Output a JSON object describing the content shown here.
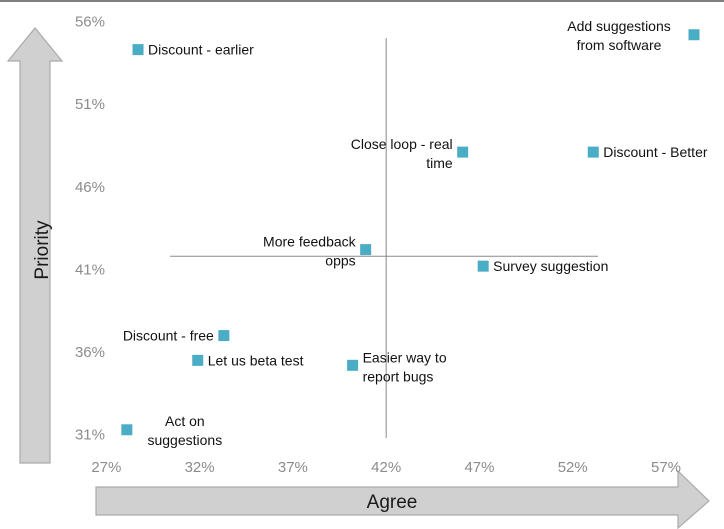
{
  "chart_data": {
    "type": "scatter",
    "title": "",
    "xlabel": "Agree",
    "ylabel": "Priority",
    "xlim": [
      26.5,
      58.5
    ],
    "ylim": [
      30.5,
      57.0
    ],
    "x_ticks": [
      "27%",
      "32%",
      "37%",
      "42%",
      "47%",
      "52%",
      "57%"
    ],
    "y_ticks": [
      "56%",
      "51%",
      "46%",
      "41%",
      "36%",
      "31%"
    ],
    "marker_color": "#4bacc6",
    "arrow_color": "#d0d0d0",
    "crosshair": {
      "x": 42,
      "y": 41.8
    },
    "points": [
      {
        "label": "Discount - earlier",
        "x": 28.7,
        "y": 54.3,
        "label_pos": "right"
      },
      {
        "label": "Add suggestions\nfrom software",
        "x": 58.5,
        "y": 55.2,
        "label_pos": "upper-left"
      },
      {
        "label": "Close loop - real\ntime",
        "x": 46.1,
        "y": 48.1,
        "label_pos": "left"
      },
      {
        "label": "Discount - Better",
        "x": 53.1,
        "y": 48.1,
        "label_pos": "right"
      },
      {
        "label": "More feedback\nopps",
        "x": 40.9,
        "y": 42.2,
        "label_pos": "left"
      },
      {
        "label": "Survey suggestion",
        "x": 47.2,
        "y": 41.2,
        "label_pos": "right"
      },
      {
        "label": "Discount - free",
        "x": 33.3,
        "y": 37.0,
        "label_pos": "left"
      },
      {
        "label": "Let us beta test",
        "x": 31.9,
        "y": 35.5,
        "label_pos": "right"
      },
      {
        "label": "Easier way to\nreport bugs",
        "x": 40.2,
        "y": 35.2,
        "label_pos": "right"
      },
      {
        "label": "Act on\nsuggestions",
        "x": 28.1,
        "y": 31.3,
        "label_pos": "right-below"
      }
    ]
  }
}
